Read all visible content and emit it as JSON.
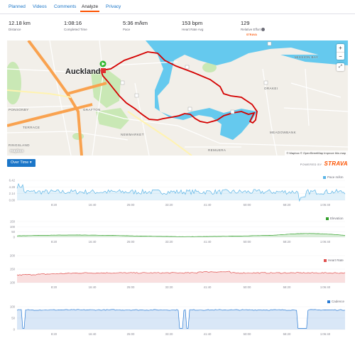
{
  "tabs": [
    {
      "label": "Planned"
    },
    {
      "label": "Videos"
    },
    {
      "label": "Comments"
    },
    {
      "label": "Analyze"
    },
    {
      "label": "Privacy"
    }
  ],
  "stats": [
    {
      "value": "12.18 km",
      "label": "Distance"
    },
    {
      "value": "1:08:16",
      "label": "Completed Time"
    },
    {
      "value": "5:36 m/km",
      "label": "Pace"
    },
    {
      "value": "153 bpm",
      "label": "Heart Rate Avg"
    },
    {
      "value": "129",
      "label": "Relative Effort"
    }
  ],
  "map": {
    "city_label": "Auckland",
    "areas": [
      "GRAFTON",
      "NEWMARKET",
      "REMUERA",
      "MEADOWBANK",
      "ORAKEI",
      "MISSION BAY",
      "RINGSLAND",
      "PONSONBY",
      "TERRACE"
    ],
    "zoom_in": "+",
    "zoom_out": "−",
    "attribution": "© Mapbox © OpenStreetMap Improve this map",
    "logo": "mapbox",
    "route_color": "#d40000",
    "water_color": "#65c9ee"
  },
  "controls": {
    "over_time": "Over Time ▾",
    "powered_by": "POWERED BY",
    "brand": "STRAVA"
  },
  "charts": {
    "x_ticks": [
      "8:20",
      "16:40",
      "25:00",
      "33:20",
      "41:40",
      "50:00",
      "58:20",
      "1:06:40"
    ],
    "pace": {
      "legend": "Pace m/km",
      "y_ticks": [
        "0.00",
        "2.14",
        "4.28",
        "6.42"
      ],
      "color": "#5ab4e6"
    },
    "elevation": {
      "legend": "Elevation",
      "y_ticks": [
        "0",
        "50",
        "100",
        "150"
      ],
      "color": "#33a02c"
    },
    "heart_rate": {
      "legend": "Heart Rate",
      "y_ticks": [
        "100",
        "150",
        "200"
      ],
      "color": "#e0504e"
    },
    "cadence": {
      "legend": "Cadence",
      "y_ticks": [
        "0",
        "50",
        "100"
      ],
      "color": "#2a7bd4"
    }
  }
}
